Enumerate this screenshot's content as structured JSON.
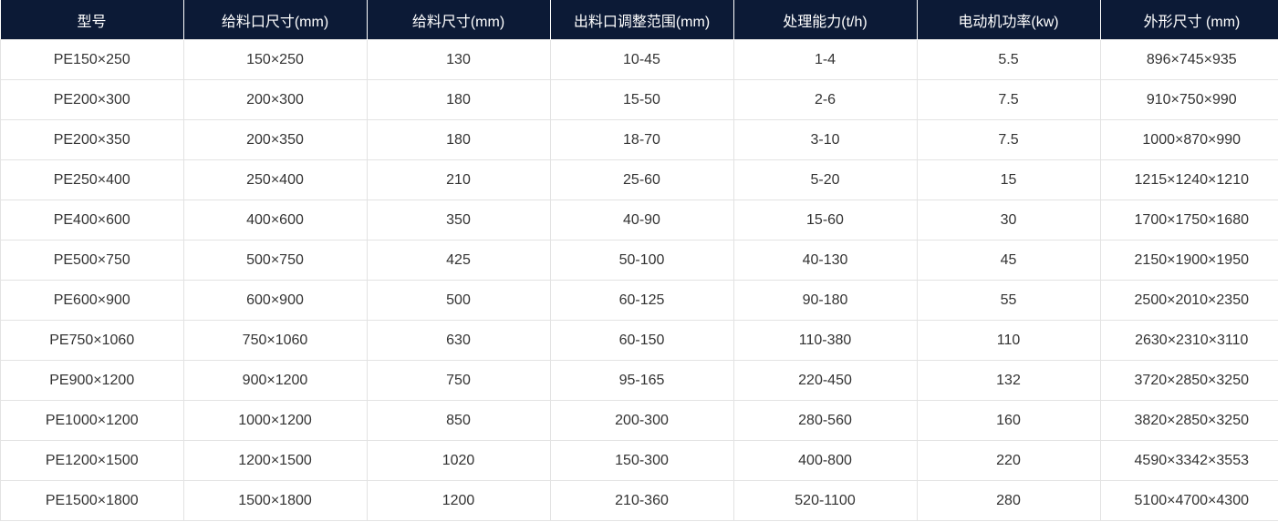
{
  "table": {
    "header": [
      "型号",
      "给料口尺寸(mm)",
      "给料尺寸(mm)",
      "出料口调整范围(mm)",
      "处理能力(t/h)",
      "电动机功率(kw)",
      "外形尺寸 (mm)"
    ],
    "rows": [
      [
        "PE150×250",
        "150×250",
        "130",
        "10-45",
        "1-4",
        "5.5",
        "896×745×935"
      ],
      [
        "PE200×300",
        "200×300",
        "180",
        "15-50",
        "2-6",
        "7.5",
        "910×750×990"
      ],
      [
        "PE200×350",
        "200×350",
        "180",
        "18-70",
        "3-10",
        "7.5",
        "1000×870×990"
      ],
      [
        "PE250×400",
        "250×400",
        "210",
        "25-60",
        "5-20",
        "15",
        "1215×1240×1210"
      ],
      [
        "PE400×600",
        "400×600",
        "350",
        "40-90",
        "15-60",
        "30",
        "1700×1750×1680"
      ],
      [
        "PE500×750",
        "500×750",
        "425",
        "50-100",
        "40-130",
        "45",
        "2150×1900×1950"
      ],
      [
        "PE600×900",
        "600×900",
        "500",
        "60-125",
        "90-180",
        "55",
        "2500×2010×2350"
      ],
      [
        "PE750×1060",
        "750×1060",
        "630",
        "60-150",
        "110-380",
        "110",
        "2630×2310×3110"
      ],
      [
        "PE900×1200",
        "900×1200",
        "750",
        "95-165",
        "220-450",
        "132",
        "3720×2850×3250"
      ],
      [
        "PE1000×1200",
        "1000×1200",
        "850",
        "200-300",
        "280-560",
        "160",
        "3820×2850×3250"
      ],
      [
        "PE1200×1500",
        "1200×1500",
        "1020",
        "150-300",
        "400-800",
        "220",
        "4590×3342×3553"
      ],
      [
        "PE1500×1800",
        "1500×1800",
        "1200",
        "210-360",
        "520-1100",
        "280",
        "5100×4700×4300"
      ]
    ]
  }
}
